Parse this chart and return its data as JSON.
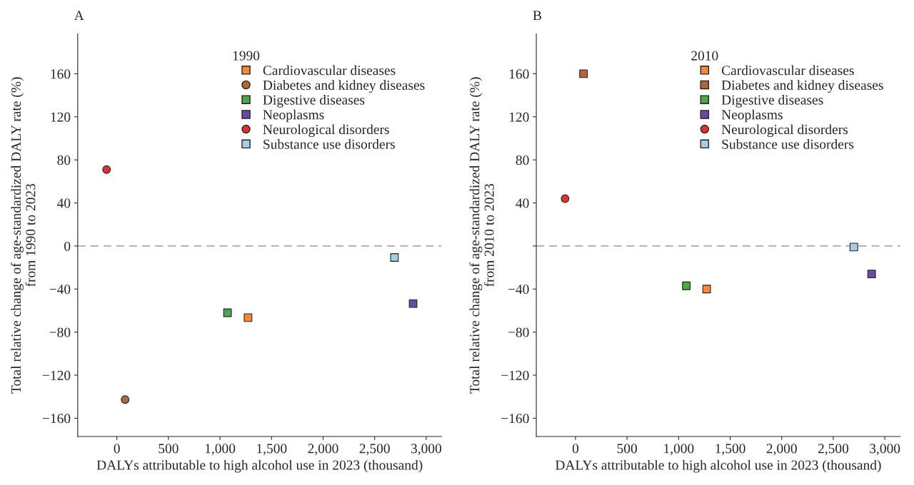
{
  "chart_data": [
    {
      "type": "scatter",
      "title": "A",
      "xlabel": "DALYs attributable to high alcohol use in 2023 (thousand)",
      "ylabel": "Total relative change of age-standardized DALY rate (%)\nfrom 1990 to 2023",
      "legend_title": "1990",
      "legend": "top right",
      "grid": false,
      "xlim": [
        -380,
        3150
      ],
      "xticks": [
        0,
        500,
        {
          "value": 1000,
          "label": "1,000"
        },
        {
          "value": 1500,
          "label": "1,500"
        },
        {
          "value": 2000,
          "label": "2,000"
        },
        {
          "value": 2500,
          "label": "2,500"
        },
        {
          "value": 3000,
          "label": "3,000"
        }
      ],
      "ylim": [
        -177,
        197
      ],
      "yticks": [
        {
          "value": -160,
          "label": "−160"
        },
        {
          "value": -120,
          "label": "−120"
        },
        {
          "value": -80,
          "label": "−80"
        },
        {
          "value": -40,
          "label": "−40"
        },
        0,
        40,
        80,
        120,
        160
      ],
      "ref_lines": [
        {
          "axis": "y",
          "value": 0,
          "color": "#888888",
          "line_style": "dashed"
        }
      ],
      "series": [
        {
          "name": "Cardiovascular diseases",
          "color": "#f58a35",
          "marker": "square",
          "x": [
            1272
          ],
          "values": [
            -66.6
          ]
        },
        {
          "name": "Diabetes and kidney diseases",
          "color": "#b0673a",
          "marker": "circle",
          "x": [
            80
          ],
          "values": [
            -142.7
          ]
        },
        {
          "name": "Digestive diseases",
          "color": "#4ca64a",
          "marker": "square",
          "x": [
            1073
          ],
          "values": [
            -62
          ]
        },
        {
          "name": "Neoplasms",
          "color": "#6a4ba3",
          "marker": "square",
          "x": [
            2873
          ],
          "values": [
            -53.5
          ]
        },
        {
          "name": "Neurological disorders",
          "color": "#e03030",
          "marker": "circle",
          "x": [
            -100
          ],
          "values": [
            71
          ]
        },
        {
          "name": "Substance use disorders",
          "color": "#a6cee3",
          "marker": "square",
          "x": [
            2692
          ],
          "values": [
            -10.7
          ]
        }
      ]
    },
    {
      "type": "scatter",
      "title": "B",
      "xlabel": "DALYs attributable to high alcohol use in 2023 (thousand)",
      "ylabel": "Total relative change of age-standardized DALY rate (%)\nfrom 2010 to 2023",
      "legend_title": "2010",
      "legend": "top right",
      "grid": false,
      "xlim": [
        -380,
        3150
      ],
      "xticks": [
        0,
        500,
        {
          "value": 1000,
          "label": "1,000"
        },
        {
          "value": 1500,
          "label": "1,500"
        },
        {
          "value": 2000,
          "label": "2,000"
        },
        {
          "value": 2500,
          "label": "2,500"
        },
        {
          "value": 3000,
          "label": "3,000"
        }
      ],
      "ylim": [
        -177,
        197
      ],
      "yticks": [
        {
          "value": -160,
          "label": "−160"
        },
        {
          "value": -120,
          "label": "−120"
        },
        {
          "value": -80,
          "label": "−80"
        },
        {
          "value": -40,
          "label": "−40"
        },
        {
          "value": 0,
          "label": null
        },
        40,
        80,
        120,
        160
      ],
      "ref_lines": [
        {
          "axis": "y",
          "value": 0,
          "color": "#888888",
          "line_style": "dashed"
        }
      ],
      "series": [
        {
          "name": "Cardiovascular diseases",
          "color": "#f58a35",
          "marker": "square",
          "x": [
            1272
          ],
          "values": [
            -40
          ]
        },
        {
          "name": "Diabetes and kidney diseases",
          "color": "#b0673a",
          "marker": "square",
          "x": [
            78
          ],
          "values": [
            160
          ]
        },
        {
          "name": "Digestive diseases",
          "color": "#4ca64a",
          "marker": "square",
          "x": [
            1075
          ],
          "values": [
            -37
          ]
        },
        {
          "name": "Neoplasms",
          "color": "#6a4ba3",
          "marker": "square",
          "x": [
            2872
          ],
          "values": [
            -26
          ]
        },
        {
          "name": "Neurological disorders",
          "color": "#e03030",
          "marker": "circle",
          "x": [
            -101
          ],
          "values": [
            44
          ]
        },
        {
          "name": "Substance use disorders",
          "color": "#a6cee3",
          "marker": "square",
          "x": [
            2700
          ],
          "values": [
            -1
          ]
        }
      ]
    }
  ]
}
